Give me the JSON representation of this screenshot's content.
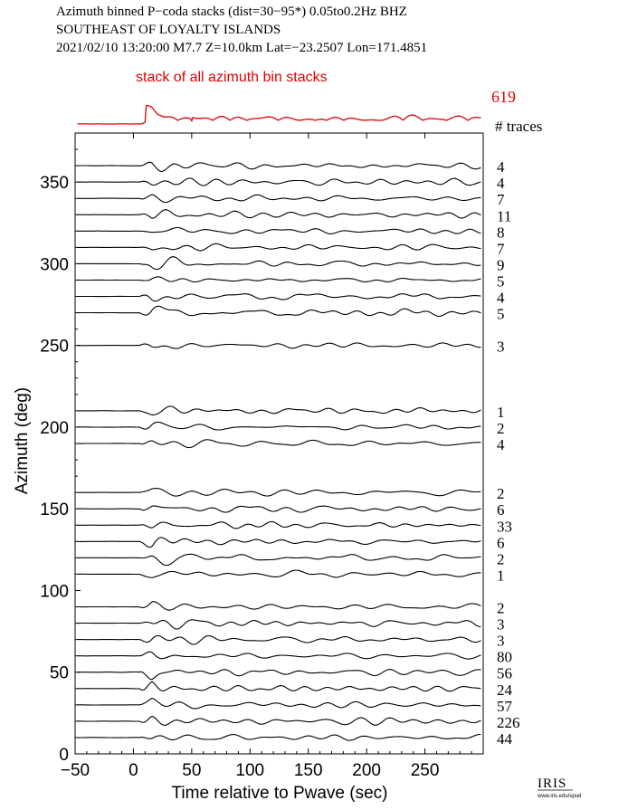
{
  "header": {
    "line1": "Azimuth binned P−coda stacks (dist=30−95*)  0.05to0.2Hz  BHZ",
    "line2": "SOUTHEAST OF LOYALTY ISLANDS",
    "line3": "2021/02/10  13:20:00  M7.7  Z=10.0km Lat=−23.2507 Lon=171.4851"
  },
  "summary": {
    "label": "stack of all azimuth bin stacks",
    "count": "619",
    "traces_label": "# traces"
  },
  "logo": {
    "main": "IRIS",
    "sub": "www.iris.edu/spud"
  },
  "colors": {
    "summary": "#e00000",
    "traces": "#000000"
  },
  "chart_data": {
    "type": "line",
    "xlabel": "Time relative to Pwave (sec)",
    "ylabel": "Azimuth (deg)",
    "xlim": [
      -50,
      300
    ],
    "ylim": [
      0,
      380
    ],
    "xticks": [
      -50,
      0,
      50,
      100,
      150,
      200,
      250
    ],
    "xtick_labels": [
      "−50",
      "0",
      "50",
      "100",
      "150",
      "200",
      "250"
    ],
    "yticks": [
      0,
      50,
      100,
      150,
      200,
      250,
      300,
      350
    ],
    "ytick_labels": [
      "0",
      "50",
      "100",
      "150",
      "200",
      "250",
      "300",
      "350"
    ],
    "series": [
      {
        "azimuth": 360,
        "count": "4"
      },
      {
        "azimuth": 350,
        "count": "4"
      },
      {
        "azimuth": 340,
        "count": "7"
      },
      {
        "azimuth": 330,
        "count": "11"
      },
      {
        "azimuth": 320,
        "count": "8"
      },
      {
        "azimuth": 310,
        "count": "7"
      },
      {
        "azimuth": 300,
        "count": "9"
      },
      {
        "azimuth": 290,
        "count": "5"
      },
      {
        "azimuth": 280,
        "count": "4"
      },
      {
        "azimuth": 270,
        "count": "5"
      },
      {
        "azimuth": 250,
        "count": "3"
      },
      {
        "azimuth": 210,
        "count": "1"
      },
      {
        "azimuth": 200,
        "count": "2"
      },
      {
        "azimuth": 190,
        "count": "4"
      },
      {
        "azimuth": 160,
        "count": "2"
      },
      {
        "azimuth": 150,
        "count": "6"
      },
      {
        "azimuth": 140,
        "count": "33"
      },
      {
        "azimuth": 130,
        "count": "6"
      },
      {
        "azimuth": 120,
        "count": "2"
      },
      {
        "azimuth": 110,
        "count": "1"
      },
      {
        "azimuth": 90,
        "count": "2"
      },
      {
        "azimuth": 80,
        "count": "3"
      },
      {
        "azimuth": 70,
        "count": "3"
      },
      {
        "azimuth": 60,
        "count": "80"
      },
      {
        "azimuth": 50,
        "count": "56"
      },
      {
        "azimuth": 40,
        "count": "24"
      },
      {
        "azimuth": 30,
        "count": "57"
      },
      {
        "azimuth": 20,
        "count": "226"
      },
      {
        "azimuth": 10,
        "count": "44"
      }
    ]
  }
}
